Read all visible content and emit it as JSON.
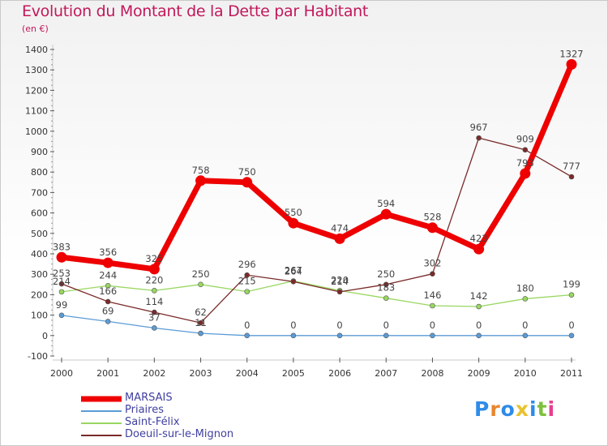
{
  "header": {
    "title": "Evolution du Montant de la Dette par Habitant",
    "subtitle": "(en €)"
  },
  "logo": {
    "text": "Proxiti",
    "colors": [
      "#2e8be8",
      "#e8862e",
      "#2e8be8",
      "#e8c22e",
      "#2e8be8",
      "#7cc13a",
      "#e83e8c"
    ]
  },
  "chart_data": {
    "type": "line",
    "x": [
      2000,
      2001,
      2002,
      2003,
      2004,
      2005,
      2006,
      2007,
      2008,
      2009,
      2010,
      2011
    ],
    "x_tick_labels": [
      "2000",
      "2001",
      "2002",
      "2003",
      "2004",
      "2005",
      "2006",
      "2007",
      "2008",
      "2009",
      "2010",
      "2011"
    ],
    "ylim": [
      -100,
      1400
    ],
    "y_tick_labels": [
      "-100",
      "0",
      "100",
      "200",
      "300",
      "400",
      "500",
      "600",
      "700",
      "800",
      "900",
      "1000",
      "1100",
      "1200",
      "1300",
      "1400"
    ],
    "y_ticks": [
      -100,
      0,
      100,
      200,
      300,
      400,
      500,
      600,
      700,
      800,
      900,
      1000,
      1100,
      1200,
      1300,
      1400
    ],
    "grid": false,
    "legend_position": "bottom-left",
    "series": [
      {
        "name": "MARSAIS",
        "color": "#ee0000",
        "values": [
          383,
          356,
          325,
          758,
          750,
          550,
          474,
          594,
          528,
          423,
          793,
          1327
        ]
      },
      {
        "name": "Priaires",
        "color": "#5b9bd5",
        "values": [
          99,
          69,
          37,
          11,
          0,
          0,
          0,
          0,
          0,
          0,
          0,
          0
        ]
      },
      {
        "name": "Saint-Félix",
        "color": "#98d760",
        "values": [
          214,
          244,
          220,
          250,
          215,
          267,
          220,
          183,
          146,
          142,
          180,
          199
        ]
      },
      {
        "name": "Doeuil-sur-le-Mignon",
        "color": "#7a2a2a",
        "values": [
          253,
          166,
          114,
          62,
          296,
          264,
          214,
          250,
          302,
          967,
          909,
          777
        ]
      }
    ]
  }
}
